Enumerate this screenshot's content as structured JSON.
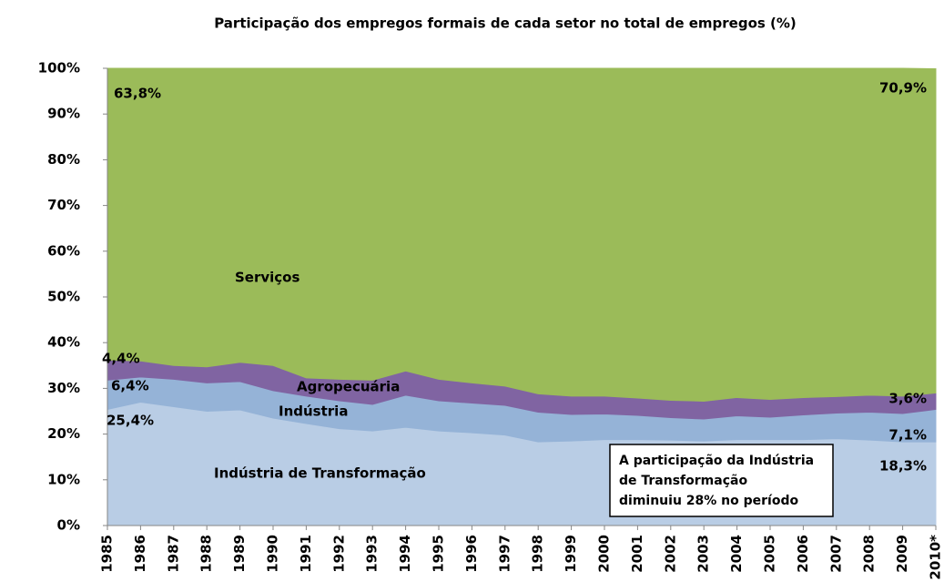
{
  "chart_data": {
    "type": "stacked_area",
    "title": "Participação dos empregos formais de cada setor no total de empregos (%)",
    "categories": [
      "1985",
      "1986",
      "1987",
      "1988",
      "1989",
      "1990",
      "1991",
      "1992",
      "1993",
      "1994",
      "1995",
      "1996",
      "1997",
      "1998",
      "1999",
      "2000",
      "2001",
      "2002",
      "2003",
      "2004",
      "2005",
      "2006",
      "2007",
      "2008",
      "2009",
      "2010*"
    ],
    "series": [
      {
        "name": "Indústria de Transformação",
        "color": "#b9cde5",
        "values": [
          25.4,
          27,
          26,
          25,
          25.3,
          23.5,
          22.3,
          21.2,
          20.7,
          21.5,
          20.7,
          20.3,
          19.8,
          18.3,
          18.5,
          18.8,
          18.8,
          18.7,
          18.5,
          18.8,
          18.8,
          18.8,
          19,
          18.7,
          18.3,
          18.3
        ],
        "value_labels": [
          "25,4%",
          null,
          null,
          null,
          null,
          null,
          null,
          null,
          null,
          null,
          null,
          null,
          null,
          null,
          null,
          null,
          null,
          null,
          null,
          null,
          null,
          null,
          null,
          null,
          null,
          "18,3%"
        ]
      },
      {
        "name": "Indústria",
        "color": "#95b3d7",
        "values": [
          6.4,
          5.5,
          6,
          6.2,
          6.2,
          6,
          6,
          6.1,
          5.8,
          7,
          6.6,
          6.5,
          6.5,
          6.5,
          5.8,
          5.6,
          5.3,
          4.9,
          4.8,
          5.2,
          4.9,
          5.4,
          5.6,
          6.1,
          6.2,
          7.1
        ],
        "value_labels": [
          "6,4%",
          null,
          null,
          null,
          null,
          null,
          null,
          null,
          null,
          null,
          null,
          null,
          null,
          null,
          null,
          null,
          null,
          null,
          null,
          null,
          null,
          null,
          null,
          null,
          null,
          "7,1%"
        ]
      },
      {
        "name": "Agropecuária",
        "color": "#8064a2",
        "values": [
          4.4,
          3.5,
          3,
          3.5,
          4.2,
          5.5,
          4,
          4.7,
          5.3,
          5.3,
          4.7,
          4.4,
          4.2,
          4,
          4,
          3.9,
          3.8,
          3.8,
          3.9,
          4,
          3.9,
          3.8,
          3.6,
          3.7,
          3.8,
          3.6
        ],
        "value_labels": [
          "4,4%",
          null,
          null,
          null,
          null,
          null,
          null,
          null,
          null,
          null,
          null,
          null,
          null,
          null,
          null,
          null,
          null,
          null,
          null,
          null,
          null,
          null,
          null,
          null,
          null,
          "3,6%"
        ]
      },
      {
        "name": "Serviços",
        "color": "#9bbb59",
        "values": [
          63.8,
          64,
          65,
          65.3,
          64.3,
          65,
          67.7,
          68,
          68.2,
          66.2,
          68,
          68.8,
          69.5,
          71.2,
          71.7,
          71.7,
          72.1,
          72.6,
          72.8,
          72,
          72.4,
          72,
          71.8,
          71.5,
          71.7,
          70.9
        ],
        "value_labels": [
          "63,8%",
          null,
          null,
          null,
          null,
          null,
          null,
          null,
          null,
          null,
          null,
          null,
          null,
          null,
          null,
          null,
          null,
          null,
          null,
          null,
          null,
          null,
          null,
          null,
          null,
          "70,9%"
        ]
      }
    ],
    "ylim": [
      0,
      100
    ],
    "yticks": [
      {
        "value": 0,
        "label": "0%"
      },
      {
        "value": 10,
        "label": "10%"
      },
      {
        "value": 20,
        "label": "20%"
      },
      {
        "value": 30,
        "label": "30%"
      },
      {
        "value": 40,
        "label": "40%"
      },
      {
        "value": 50,
        "label": "50%"
      },
      {
        "value": 60,
        "label": "60%"
      },
      {
        "value": 70,
        "label": "70%"
      },
      {
        "value": 80,
        "label": "80%"
      },
      {
        "value": 90,
        "label": "90%"
      },
      {
        "value": 100,
        "label": "100%"
      }
    ],
    "annotation": [
      "A participação da Indústria",
      "de Transformação",
      "diminuiu 28% no período"
    ]
  }
}
